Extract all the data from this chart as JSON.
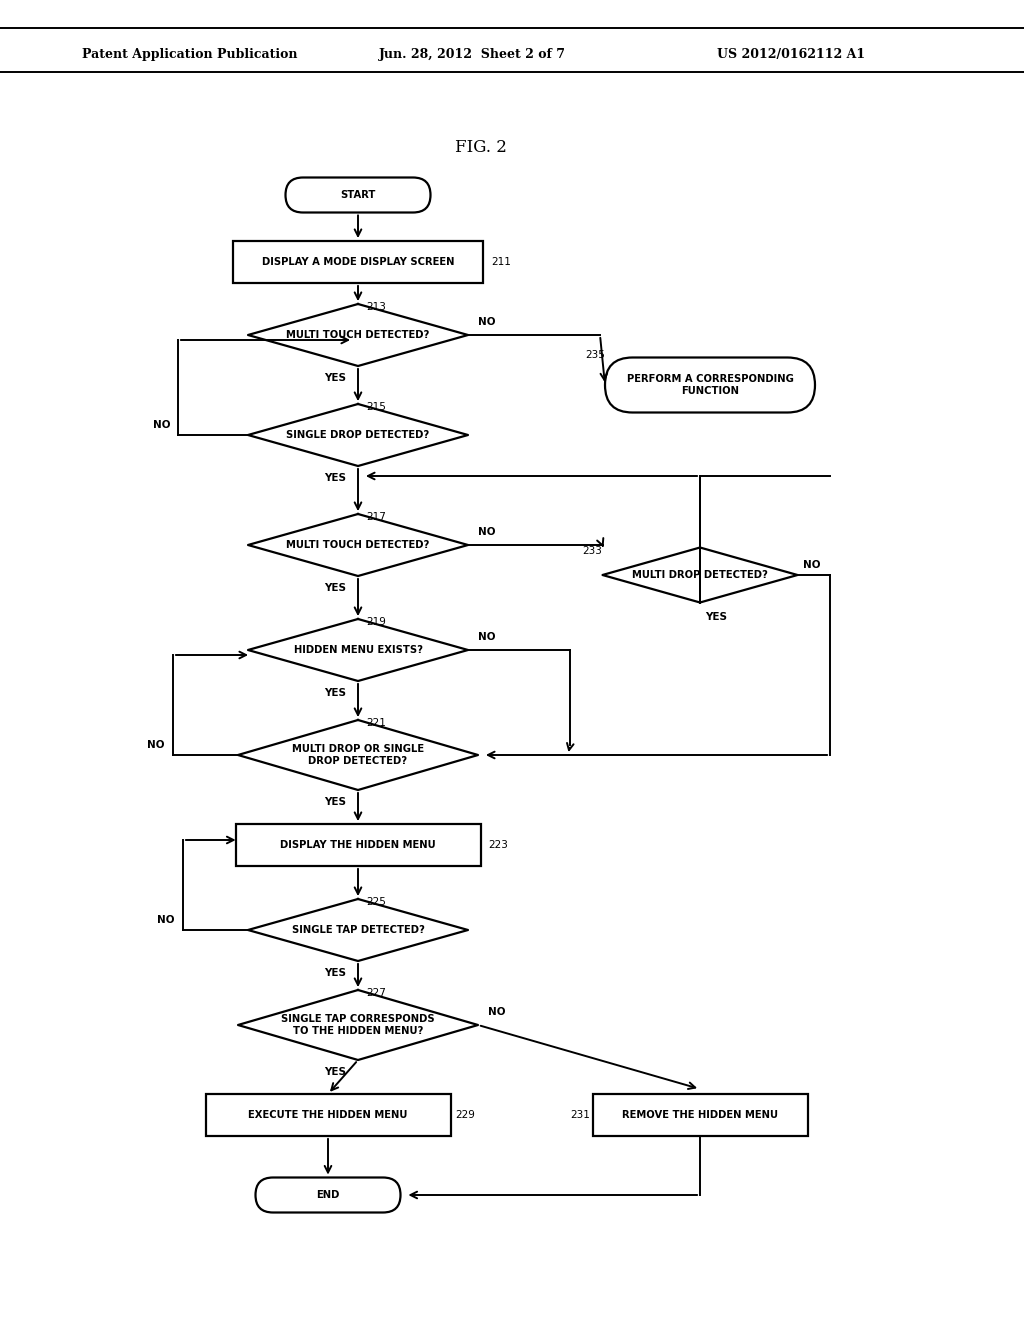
{
  "title": "FIG. 2",
  "header_left": "Patent Application Publication",
  "header_center": "Jun. 28, 2012  Sheet 2 of 7",
  "header_right": "US 2012/0162112 A1",
  "bg_color": "#ffffff",
  "lw_shape": 1.6,
  "lw_arrow": 1.4,
  "fs_label": 7.2,
  "fs_num": 7.5,
  "fs_yesno": 7.5,
  "fs_title": 12,
  "fs_header": 9
}
